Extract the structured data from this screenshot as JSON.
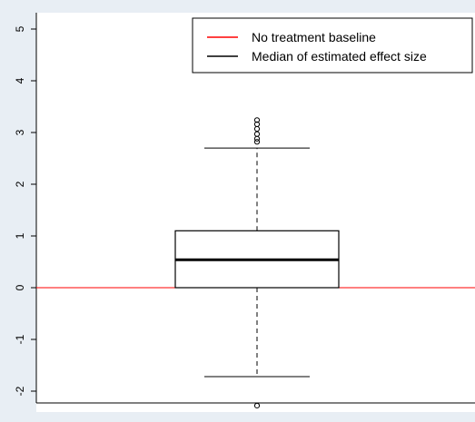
{
  "chart_data": {
    "type": "box",
    "ylim": [
      -2.3,
      5.3
    ],
    "y_ticks": [
      -2,
      -1,
      0,
      1,
      2,
      3,
      4,
      5
    ],
    "y_tick_labels": [
      "-2",
      "-1",
      "0",
      "1",
      "2",
      "3",
      "4",
      "5"
    ],
    "grid": false,
    "box": {
      "whisker_low": -1.72,
      "q1": 0.0,
      "median": 0.54,
      "q3": 1.1,
      "whisker_high": 2.7,
      "outliers": [
        2.82,
        2.88,
        2.97,
        3.07,
        3.16,
        3.24,
        -2.28
      ]
    },
    "baseline": {
      "y": 0,
      "color": "#ff0000"
    },
    "legend": {
      "position": "top-right",
      "entries": [
        {
          "label": "No treatment baseline",
          "color": "#ff0000"
        },
        {
          "label": "Median of estimated effect size",
          "color": "#000000"
        }
      ]
    }
  }
}
